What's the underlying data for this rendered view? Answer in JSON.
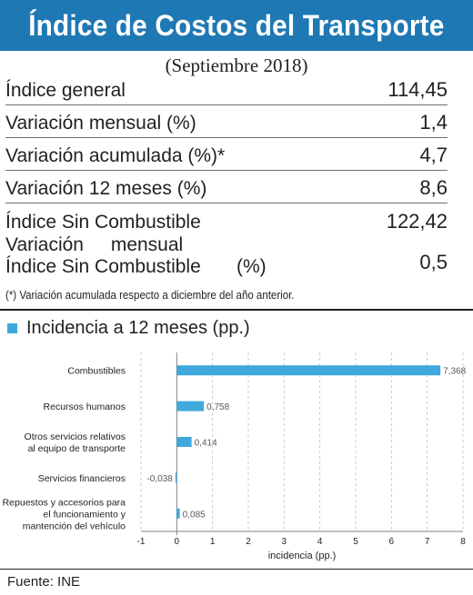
{
  "header": {
    "title": "Índice de Costos del Transporte",
    "period": "(Septiembre 2018)"
  },
  "indicators": [
    {
      "label": "Índice general",
      "value": "114,45"
    },
    {
      "label": "Variación mensual (%)",
      "value": "1,4"
    },
    {
      "label": "Variación acumulada (%)*",
      "value": "4,7"
    },
    {
      "label": "Variación 12 meses (%)",
      "value": "8,6"
    },
    {
      "label": "Índice Sin Combustible",
      "value": "122,42"
    }
  ],
  "indicator_multiline": {
    "line1": "Variación mensual",
    "line2": "Índice Sin Combustible",
    "unit": "(%)",
    "value": "0,5"
  },
  "footnote": "(*)  Variación acumulada respecto a diciembre del año anterior.",
  "legend_label": "Incidencia a 12 meses (pp.)",
  "source": "Fuente: INE",
  "colors": {
    "banner": "#1e78b4",
    "bar": "#3fa9dd"
  },
  "chart_data": {
    "type": "bar",
    "orientation": "horizontal",
    "categories": [
      [
        "Combustibles"
      ],
      [
        "Recursos humanos"
      ],
      [
        "Otros servicios relativos",
        "al equipo de transporte"
      ],
      [
        "Servicios financieros"
      ],
      [
        "Repuestos y accesorios para",
        "el funcionamiento y",
        "mantención del vehículo"
      ]
    ],
    "values": [
      7.368,
      0.758,
      0.414,
      -0.038,
      0.085
    ],
    "value_labels": [
      "7,368",
      "0,758",
      "0,414",
      "-0,038",
      "0,085"
    ],
    "xlim": [
      -1,
      8
    ],
    "xticks": [
      "-1",
      "0",
      "1",
      "2",
      "3",
      "4",
      "5",
      "6",
      "7",
      "8"
    ],
    "xlabel": "incidencia (pp.)",
    "grid": "vertical dashed"
  }
}
